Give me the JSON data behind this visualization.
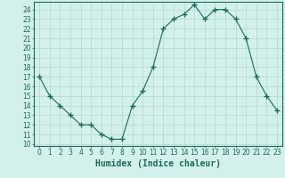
{
  "x": [
    0,
    1,
    2,
    3,
    4,
    5,
    6,
    7,
    8,
    9,
    10,
    11,
    12,
    13,
    14,
    15,
    16,
    17,
    18,
    19,
    20,
    21,
    22,
    23
  ],
  "y": [
    17,
    15,
    14,
    13,
    12,
    12,
    11,
    10.5,
    10.5,
    14,
    15.5,
    18,
    22,
    23,
    23.5,
    24.5,
    23,
    24,
    24,
    23,
    21,
    17,
    15,
    13.5
  ],
  "line_color": "#1a6b5a",
  "marker": "+",
  "marker_size": 4,
  "bg_color": "#d4f0ea",
  "grid_color": "#b0d8d2",
  "xlabel": "Humidex (Indice chaleur)",
  "xlabel_fontsize": 7,
  "xlim": [
    -0.5,
    23.5
  ],
  "ylim": [
    9.8,
    24.8
  ],
  "yticks": [
    10,
    11,
    12,
    13,
    14,
    15,
    16,
    17,
    18,
    19,
    20,
    21,
    22,
    23,
    24
  ],
  "xticks": [
    0,
    1,
    2,
    3,
    4,
    5,
    6,
    7,
    8,
    9,
    10,
    11,
    12,
    13,
    14,
    15,
    16,
    17,
    18,
    19,
    20,
    21,
    22,
    23
  ],
  "tick_fontsize": 5.5,
  "axis_color": "#1a6b5a"
}
